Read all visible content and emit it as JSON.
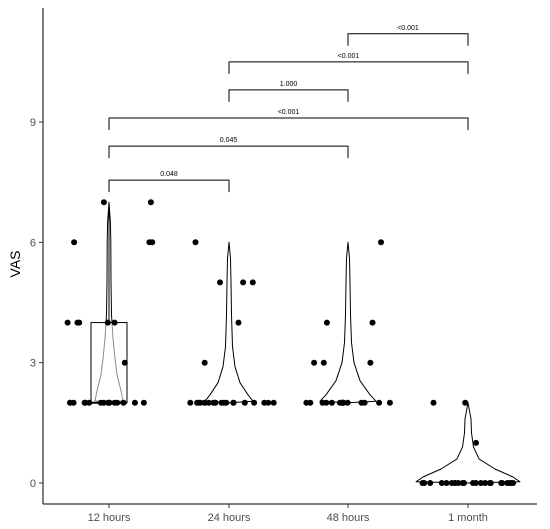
{
  "chart_data": {
    "type": "violin-box-jitter",
    "ylabel": "VAS",
    "xlabel": "",
    "ylim": [
      -0.5,
      11.9
    ],
    "yticks": [
      0,
      3,
      6,
      9
    ],
    "categories": [
      "12 hours",
      "24 hours",
      "48 hours",
      "1 month"
    ],
    "boxplots": [
      {
        "group": "12 hours",
        "q1": 2,
        "median": 2,
        "q3": 4,
        "whisker_low": 2,
        "whisker_high": 7
      }
    ],
    "violins": [
      {
        "group": "12 hours",
        "min": 2,
        "max": 7
      },
      {
        "group": "24 hours",
        "min": 2,
        "max": 6
      },
      {
        "group": "48 hours",
        "min": 2,
        "max": 6
      },
      {
        "group": "1 month",
        "min": 0,
        "max": 2
      }
    ],
    "points": [
      {
        "group": "12 hours",
        "values": [
          2,
          2,
          2,
          2,
          2,
          2,
          2,
          2,
          2,
          2,
          2,
          2,
          2,
          2,
          2,
          2,
          3,
          4,
          4,
          4,
          4,
          4,
          6,
          6,
          6,
          7,
          7
        ]
      },
      {
        "group": "24 hours",
        "values": [
          2,
          2,
          2,
          2,
          2,
          2,
          2,
          2,
          2,
          2,
          2,
          2,
          2,
          2,
          2,
          2,
          2,
          2,
          2,
          2,
          3,
          4,
          5,
          5,
          5,
          6
        ]
      },
      {
        "group": "48 hours",
        "values": [
          2,
          2,
          2,
          2,
          2,
          2,
          2,
          2,
          2,
          2,
          2,
          2,
          2,
          2,
          2,
          2,
          3,
          3,
          3,
          4,
          4,
          6
        ]
      },
      {
        "group": "1 month",
        "values": [
          0,
          0,
          0,
          0,
          0,
          0,
          0,
          0,
          0,
          0,
          0,
          0,
          0,
          0,
          0,
          0,
          0,
          0,
          0,
          0,
          0,
          0,
          0,
          1,
          2,
          2
        ]
      }
    ],
    "comparisons": [
      {
        "from": "12 hours",
        "to": "24 hours",
        "label": "0.048",
        "y": 7.55
      },
      {
        "from": "12 hours",
        "to": "48 hours",
        "label": "0.045",
        "y": 8.4
      },
      {
        "from": "12 hours",
        "to": "1 month",
        "label": "<0.001",
        "y": 9.1
      },
      {
        "from": "24 hours",
        "to": "48 hours",
        "label": "1.000",
        "y": 9.8
      },
      {
        "from": "24 hours",
        "to": "1 month",
        "label": "<0.001",
        "y": 10.5
      },
      {
        "from": "48 hours",
        "to": "1 month",
        "label": "<0.001",
        "y": 11.2
      }
    ]
  }
}
